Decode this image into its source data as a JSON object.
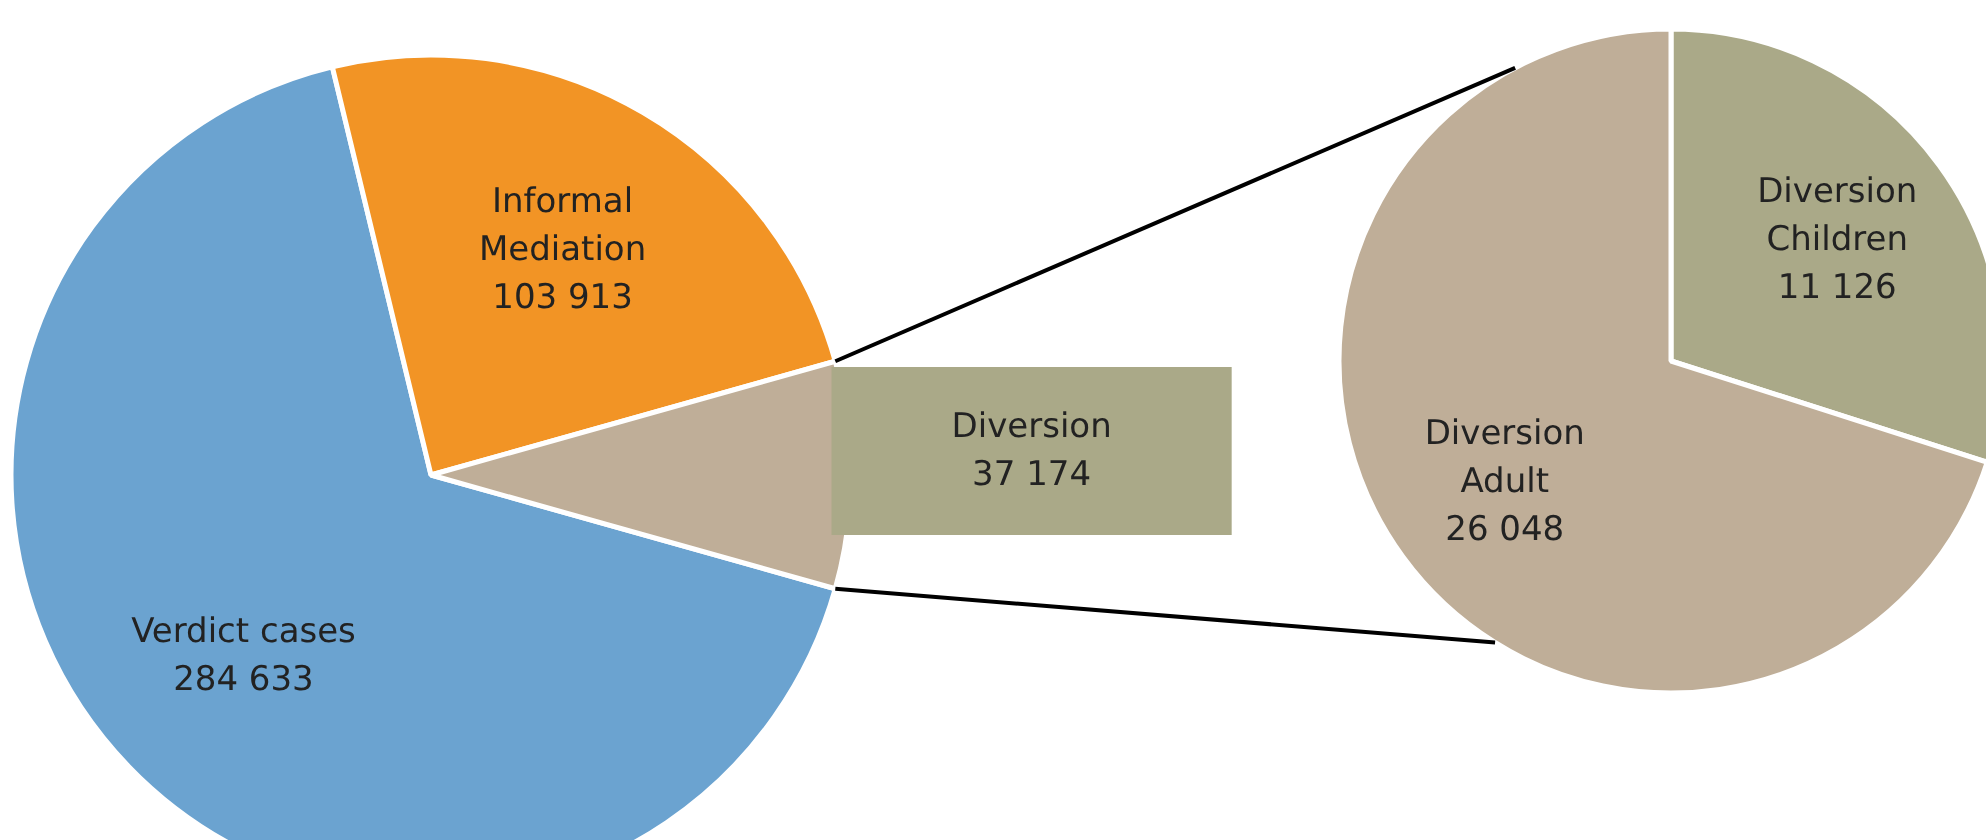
{
  "chart_data": [
    {
      "type": "pie",
      "categories": [
        "Verdict cases",
        "Informal\nMediation",
        "Diversion"
      ],
      "values": [
        284633,
        103913,
        37174
      ],
      "value_labels": [
        "284 633",
        "103 913",
        "37 174"
      ],
      "colors": [
        "#6ba3d0",
        "#f29425",
        "#bfae98"
      ]
    },
    {
      "type": "pie",
      "categories": [
        "Diversion\nChildren",
        "Diversion\nAdult"
      ],
      "values": [
        11126,
        26048
      ],
      "value_labels": [
        "11 126",
        "26 048"
      ],
      "colors": [
        "#aaa988",
        "#bfae98"
      ]
    }
  ]
}
